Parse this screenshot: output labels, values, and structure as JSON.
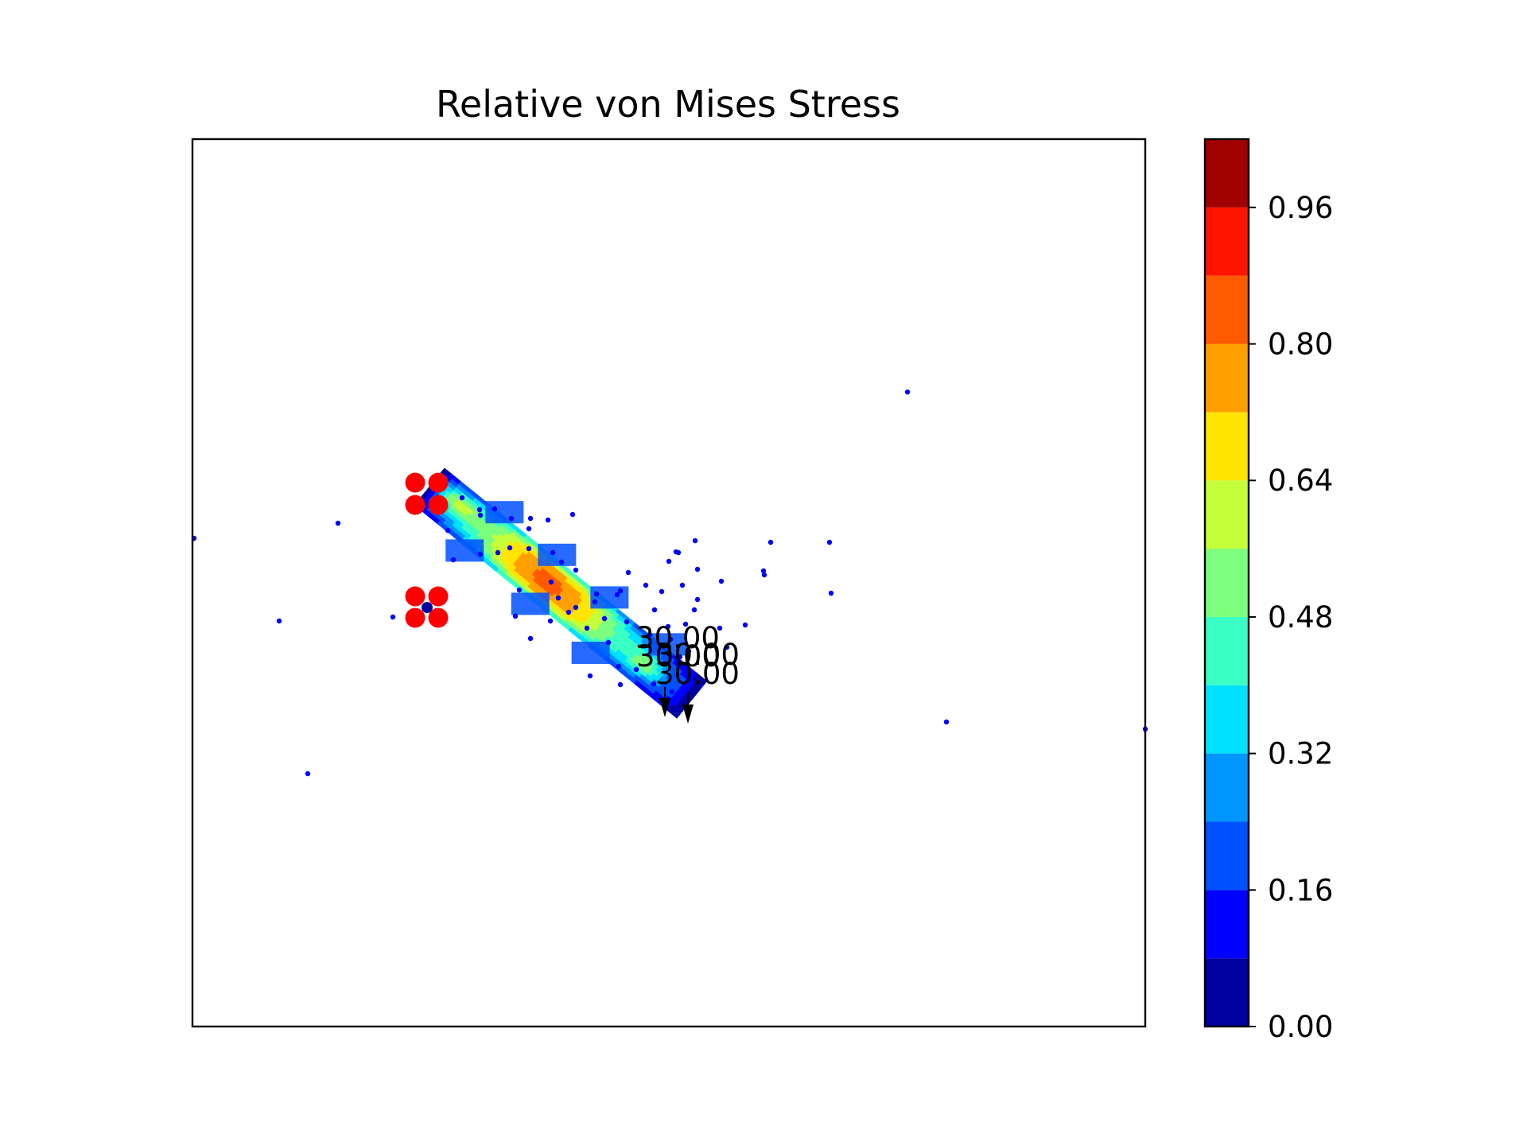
{
  "chart_data": {
    "type": "contour",
    "title": "Relative von Mises Stress",
    "xlabel": "",
    "ylabel": "",
    "axes_ticks_visible": false,
    "colormap": "jet",
    "colorbar": {
      "range": [
        0.0,
        1.04
      ],
      "levels": [
        0.0,
        0.08,
        0.16,
        0.24,
        0.32,
        0.4,
        0.48,
        0.56,
        0.64,
        0.72,
        0.8,
        0.88,
        0.96,
        1.04
      ],
      "colors": [
        "#00009f",
        "#0000ff",
        "#0050ff",
        "#0096ff",
        "#00e1ff",
        "#3affc4",
        "#7dff7d",
        "#c4ff3a",
        "#ffe500",
        "#ffa000",
        "#ff5a00",
        "#ff1400",
        "#a00000"
      ],
      "tick_labels": [
        "0.00",
        "0.16",
        "0.32",
        "0.48",
        "0.64",
        "0.80",
        "0.96"
      ]
    },
    "loads": [
      {
        "label": "30.00"
      },
      {
        "label": "30.00"
      },
      {
        "label": "30.00"
      },
      {
        "label": "30.00"
      }
    ],
    "supports": {
      "count": 8,
      "color": "#ff0000"
    },
    "node_color": "#0000ff"
  }
}
